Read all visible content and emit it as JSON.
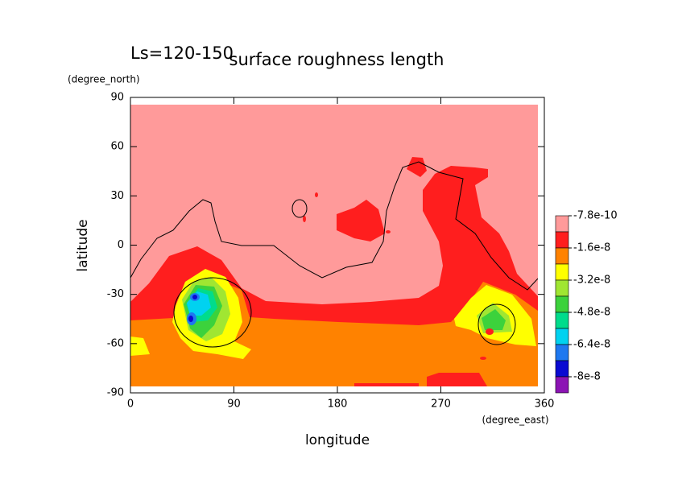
{
  "chart_data": {
    "type": "contour",
    "title": "surface roughness length",
    "annotation": "Ls=120-150",
    "x_label": "longitude",
    "y_label": "latitude",
    "x_unit": "(degree_east)",
    "y_unit": "(degree_north)",
    "xlim": [
      0,
      360
    ],
    "ylim": [
      -90,
      90
    ],
    "xticks": [
      0,
      90,
      180,
      270,
      360
    ],
    "yticks": [
      -90,
      -60,
      -30,
      0,
      30,
      60,
      90
    ],
    "levels": [
      -7.8e-10,
      -1.6e-08,
      -3.2e-08,
      -4.8e-08,
      -6.4e-08,
      -8e-08
    ],
    "colors": [
      "#ff9a9a",
      "#ff1e1e",
      "#ff8200",
      "#ffff00",
      "#a0e632",
      "#3cd23c",
      "#00dc8c",
      "#00d2f0",
      "#1e78f0",
      "#0a0ad2",
      "#8c14b4"
    ]
  }
}
